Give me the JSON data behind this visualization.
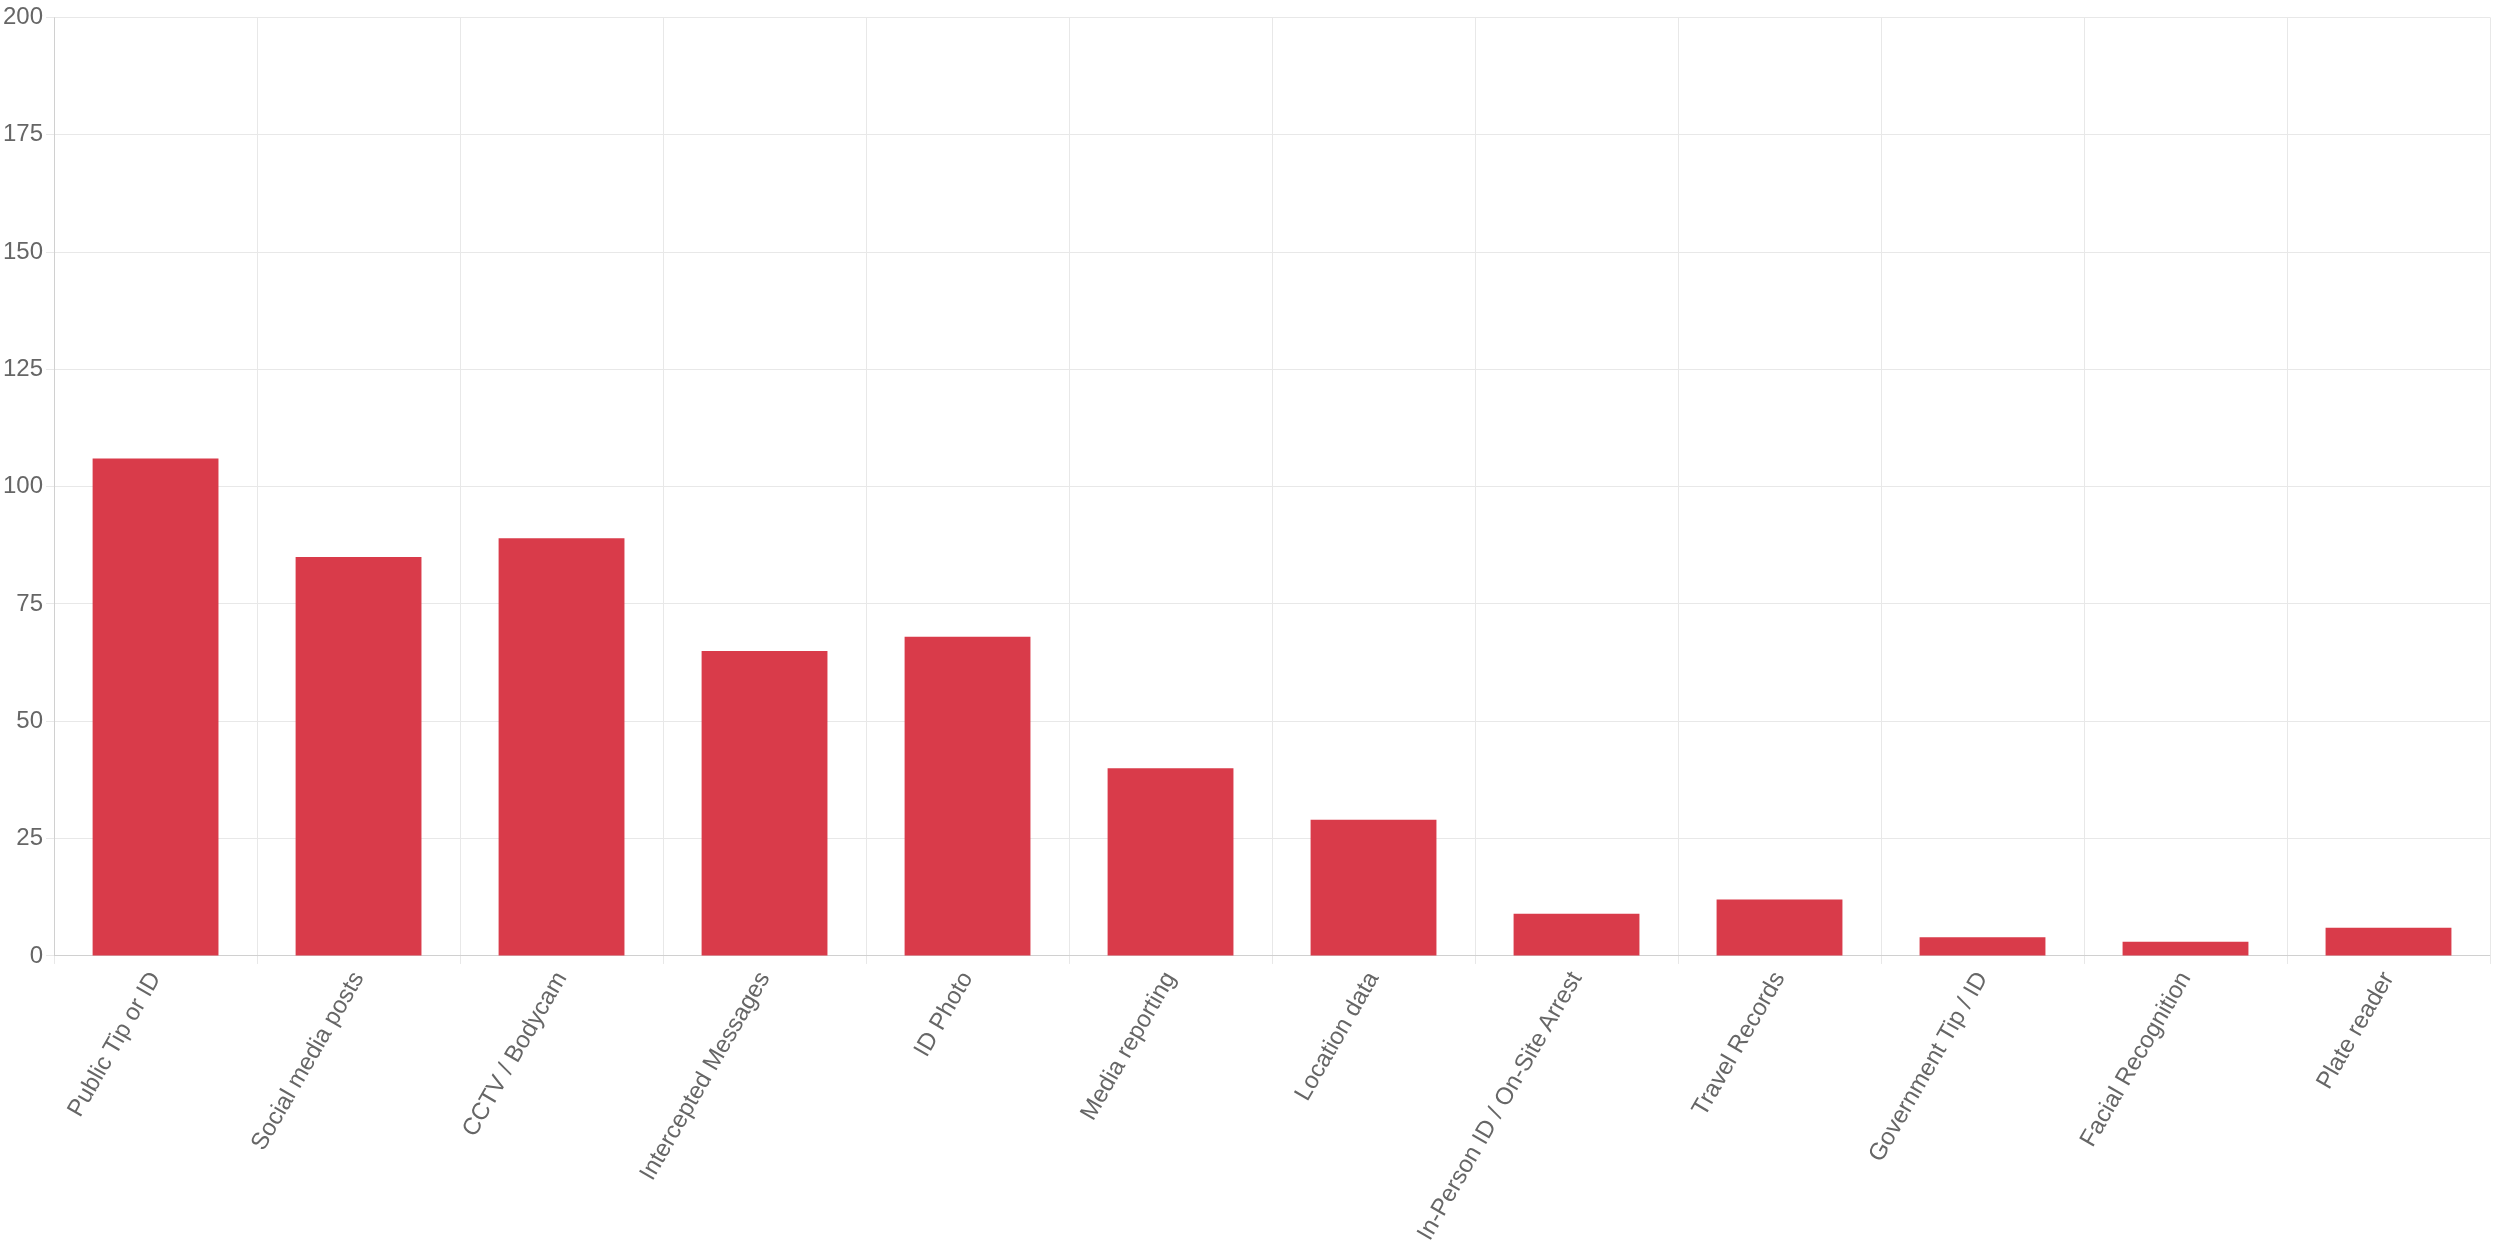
{
  "chart_data": {
    "type": "bar",
    "categories": [
      "Public Tip or ID",
      "Social media posts",
      "CCTV / Bodycam",
      "Intercepted Messages",
      "ID Photo",
      "Media reporting",
      "Location data",
      "In-Person ID / On-Site Arrest",
      "Travel Records",
      "Government Tip / ID",
      "Facial Recognition",
      "Plate reader"
    ],
    "values": [
      106,
      85,
      89,
      65,
      68,
      40,
      29,
      9,
      12,
      4,
      3,
      6
    ],
    "color": "#d93b4a",
    "ylim": [
      0,
      200
    ],
    "yticks": [
      0,
      25,
      50,
      75,
      100,
      125,
      150,
      175,
      200
    ],
    "grid": true,
    "legend": false
  }
}
